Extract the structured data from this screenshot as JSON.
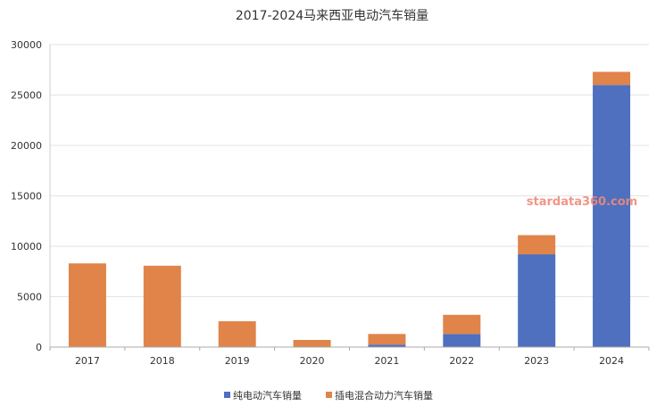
{
  "chart_data": {
    "type": "bar",
    "stacked": true,
    "title": "2017-2024马来西亚电动汽车销量",
    "categories": [
      "2017",
      "2018",
      "2019",
      "2020",
      "2021",
      "2022",
      "2023",
      "2024"
    ],
    "series": [
      {
        "name": "纯电动汽车销量",
        "color": "#4f6fbf",
        "values": [
          50,
          20,
          10,
          10,
          250,
          1300,
          9200,
          26000
        ]
      },
      {
        "name": "插电混合动力汽车销量",
        "color": "#e0844a",
        "values": [
          8250,
          8050,
          2550,
          700,
          1050,
          1900,
          1900,
          1300
        ]
      }
    ],
    "ylim": [
      0,
      30000
    ],
    "yticks": [
      "0",
      "5000",
      "10000",
      "15000",
      "20000",
      "25000",
      "30000"
    ],
    "grid": true,
    "legend_position": "bottom"
  },
  "watermark": "stardata360.com"
}
